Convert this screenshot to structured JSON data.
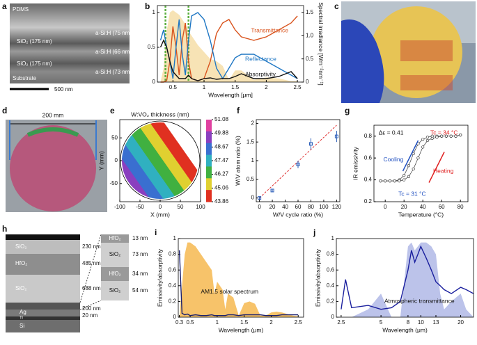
{
  "panel_labels": [
    "a",
    "b",
    "c",
    "d",
    "e",
    "f",
    "g",
    "h",
    "i",
    "j"
  ],
  "sem": {
    "top": "PDMS",
    "layers": [
      "SiO₂ (175 nm)",
      "SiO₂ (175 nm)"
    ],
    "asi": [
      "a-Si:H (75 nm)",
      "a-Si:H (66 nm)",
      "a-Si:H (73 nm)"
    ],
    "bottom": "Substrate",
    "scale_bar": "500 nm"
  },
  "wafer": {
    "dimension": "200 mm"
  },
  "stack": {
    "layers": [
      "SiO₂",
      "HfO₂",
      "SiO₂",
      "Ag",
      "Ti",
      "Si"
    ],
    "thicknesses": [
      "230 nm",
      "485 nm",
      "688 nm",
      "200 nm",
      "20 nm"
    ],
    "inset_layers": [
      "HfO₂",
      "SiO₂",
      "HfO₂",
      "SiO₂"
    ],
    "inset_thicknesses": [
      "13 nm",
      "73 nm",
      "34 nm",
      "54 nm"
    ]
  },
  "chart_data": [
    {
      "type": "line",
      "xlabel": "Wavelength [μm]",
      "y2label": "Spectral irradiance [Wm⁻²nm⁻¹]",
      "x": [
        0.3,
        0.35,
        0.4,
        0.45,
        0.5,
        0.55,
        0.6,
        0.65,
        0.7,
        0.75,
        0.8,
        0.9,
        1.0,
        1.1,
        1.2,
        1.3,
        1.4,
        1.5,
        1.6,
        1.8,
        2.0,
        2.2,
        2.4,
        2.5
      ],
      "xlim": [
        0.25,
        2.6
      ],
      "xticks": [
        0.5,
        1,
        1.5,
        2,
        2.5
      ],
      "ylim": [
        0,
        1.1
      ],
      "yticks": [
        0,
        0.5,
        1
      ],
      "y2lim": [
        0,
        1.65
      ],
      "y2ticks": [
        0,
        0.5,
        {
          "value": 1,
          "label": "1.0"
        },
        1.5
      ],
      "vlines": [
        0.38,
        0.75
      ],
      "vline_color": "#5cb040",
      "series": [
        {
          "color": "#f7e3b5",
          "fill": true,
          "axis": "y2",
          "values": [
            0,
            0.3,
            1.1,
            1.5,
            1.55,
            1.5,
            1.45,
            1.35,
            1.25,
            1.1,
            1.0,
            0.8,
            0.65,
            0.5,
            0.45,
            0.35,
            0.05,
            0.25,
            0.25,
            0.05,
            0.1,
            0.08,
            0.02,
            0.02
          ]
        },
        {
          "name": "Transmittance",
          "color": "#d9541e",
          "values": [
            0,
            0,
            0.02,
            0.3,
            0.8,
            0.5,
            0.1,
            0.6,
            0.85,
            0.3,
            0.05,
            0.02,
            0.05,
            0.3,
            0.7,
            0.85,
            0.9,
            0.75,
            0.65,
            0.6,
            0.65,
            0.75,
            0.85,
            0.95
          ]
        },
        {
          "name": "Reflectance",
          "color": "#1f77c4",
          "values": [
            0.6,
            0.75,
            0.5,
            0.3,
            0.05,
            0.5,
            0.9,
            0.4,
            0.1,
            0.6,
            0.95,
            1.0,
            0.9,
            0.6,
            0.2,
            0.05,
            0.2,
            0.35,
            0.4,
            0.4,
            0.3,
            0.2,
            0.1,
            0.05
          ]
        },
        {
          "name": "Absorptivity",
          "color": "#111111",
          "values": [
            0.5,
            0.6,
            0.5,
            0.3,
            0.15,
            0.1,
            0.05,
            0.05,
            0.05,
            0.1,
            0.05,
            0.02,
            0.05,
            0.06,
            0.04,
            0.05,
            0.05,
            0.08,
            0.12,
            0.05,
            0.05,
            0.08,
            0.15,
            0.05
          ]
        }
      ]
    },
    {
      "type": "contour",
      "title": "W:VO₂ thickness (nm)",
      "xlabel": "X (mm)",
      "ylabel": "Y (mm)",
      "xlim": [
        -100,
        100
      ],
      "xticks": [
        -100,
        -50,
        0,
        50,
        100
      ],
      "ylim": [
        -90,
        90
      ],
      "yticks": [
        -50,
        0,
        50
      ],
      "colorbar_ticks": [
        51.08,
        49.88,
        48.67,
        47.47,
        46.27,
        45.06,
        43.86
      ],
      "colorbar_colors": [
        "#e040a0",
        "#8a3fbf",
        "#3a6fd0",
        "#30b0c0",
        "#40b040",
        "#e0d030",
        "#e03020"
      ]
    },
    {
      "type": "scatter",
      "xlabel": "W/V cycle ratio (%)",
      "ylabel": "W/V atom ratio (%)",
      "x": [
        0,
        20,
        60,
        80,
        120
      ],
      "values": [
        0,
        0.2,
        0.9,
        1.45,
        1.65
      ],
      "errors": [
        0.03,
        0.04,
        0.1,
        0.15,
        0.15
      ],
      "color": "#2a5cb8",
      "fit": {
        "x": [
          0,
          120
        ],
        "values": [
          0,
          1.95
        ],
        "color": "#e03030"
      },
      "xlim": [
        -5,
        125
      ],
      "xticks": [
        0,
        20,
        40,
        60,
        80,
        100,
        120
      ],
      "ylim": [
        -0.1,
        2.1
      ],
      "yticks": [
        0,
        0.5,
        1,
        1.5,
        2
      ]
    },
    {
      "type": "line",
      "xlabel": "Temperature (°C)",
      "ylabel": "IR emissivity",
      "markers": true,
      "x": [
        -5,
        0,
        5,
        10,
        15,
        20,
        25,
        30,
        35,
        40,
        45,
        50,
        55,
        60,
        65,
        70,
        75,
        80
      ],
      "xlim": [
        -12,
        88
      ],
      "xticks": [
        0,
        20,
        40,
        60,
        80
      ],
      "ylim": [
        0.2,
        0.9
      ],
      "yticks": [
        0.2,
        0.4,
        0.6,
        0.8
      ],
      "annotations": [
        {
          "text": "Δε = 0.41",
          "color": "#111111"
        },
        {
          "text": "Tc = 34 °C",
          "color": "#e02020"
        },
        {
          "text": "Tc = 31 °C",
          "color": "#2050c0"
        }
      ],
      "series": [
        {
          "name": "Cooling",
          "color": "#2050c0",
          "values": [
            0.39,
            0.39,
            0.39,
            0.39,
            0.4,
            0.44,
            0.53,
            0.64,
            0.73,
            0.77,
            0.79,
            0.8,
            0.8,
            0.8,
            0.8,
            0.8,
            0.8,
            0.81
          ]
        },
        {
          "name": "Heating",
          "color": "#e02020",
          "values": [
            0.39,
            0.39,
            0.39,
            0.39,
            0.39,
            0.4,
            0.43,
            0.5,
            0.6,
            0.7,
            0.76,
            0.78,
            0.79,
            0.8,
            0.8,
            0.8,
            0.8,
            0.81
          ]
        }
      ]
    },
    {
      "type": "line",
      "xlabel": "Wavelength (μm)",
      "ylabel": "Emissivity/absorptivity",
      "x": [
        0.3,
        0.35,
        0.4,
        0.45,
        0.5,
        0.6,
        0.7,
        0.8,
        0.9,
        0.95,
        1.0,
        1.1,
        1.15,
        1.2,
        1.3,
        1.4,
        1.5,
        1.6,
        1.7,
        1.8,
        1.9,
        2.0,
        2.1,
        2.2,
        2.3,
        2.4,
        2.5
      ],
      "xlim": [
        0.28,
        2.6
      ],
      "xticks": [
        0.3,
        0.5,
        1,
        1.5,
        2,
        2.5
      ],
      "ylim": [
        0,
        1
      ],
      "yticks": [
        0,
        0.2,
        0.4,
        0.6,
        0.8,
        1
      ],
      "series": [
        {
          "name": "AM1.5 solar spectrum",
          "color": "#f7c36a",
          "fill": true,
          "values": [
            0,
            0.4,
            0.8,
            0.95,
            0.95,
            0.9,
            0.8,
            0.7,
            0.6,
            0.3,
            0.45,
            0.35,
            0.1,
            0.3,
            0.25,
            0.02,
            0.18,
            0.2,
            0.17,
            0.02,
            0.02,
            0.06,
            0.07,
            0.06,
            0.04,
            0.02,
            0.01
          ]
        },
        {
          "color": "#1a1f6e",
          "values": [
            0.85,
            0.05,
            0.03,
            0.04,
            0.02,
            0.03,
            0.02,
            0.02,
            0.03,
            0.02,
            0.02,
            0.02,
            0.02,
            0.03,
            0.03,
            0.02,
            0.03,
            0.03,
            0.03,
            0.03,
            0.02,
            0.02,
            0.02,
            0.03,
            0.03,
            0.03,
            0.03
          ]
        }
      ]
    },
    {
      "type": "line",
      "xlabel": "Wavelength (μm)",
      "ylabel": "Emissivity/absorptivity",
      "log_x": true,
      "x": [
        2.5,
        2.7,
        3,
        4,
        5,
        6,
        7,
        8,
        8.5,
        9,
        9.5,
        10,
        11,
        12,
        13,
        14,
        15,
        17,
        20,
        22,
        25
      ],
      "xlim": [
        2.3,
        25
      ],
      "xticks": [
        2.5,
        5,
        8,
        10,
        13,
        20
      ],
      "ylim": [
        0,
        1
      ],
      "yticks": [
        0,
        0.2,
        0.4,
        0.6,
        0.8,
        1
      ],
      "series": [
        {
          "name": "Atmospheric transmittance",
          "color": "#bcc3ea",
          "fill": true,
          "values": [
            0,
            0,
            0,
            0.1,
            0.3,
            0,
            0,
            0.9,
            0.95,
            0.85,
            0.9,
            0.95,
            0.95,
            0.9,
            0.8,
            0.3,
            0.1,
            0.2,
            0.3,
            0.1,
            0
          ]
        },
        {
          "color": "#1a1f9e",
          "values": [
            0.1,
            0.48,
            0.12,
            0.15,
            0.1,
            0.12,
            0.2,
            0.6,
            0.85,
            0.7,
            0.8,
            0.9,
            0.75,
            0.6,
            0.45,
            0.4,
            0.35,
            0.3,
            0.38,
            0.35,
            0.3
          ]
        }
      ]
    }
  ]
}
